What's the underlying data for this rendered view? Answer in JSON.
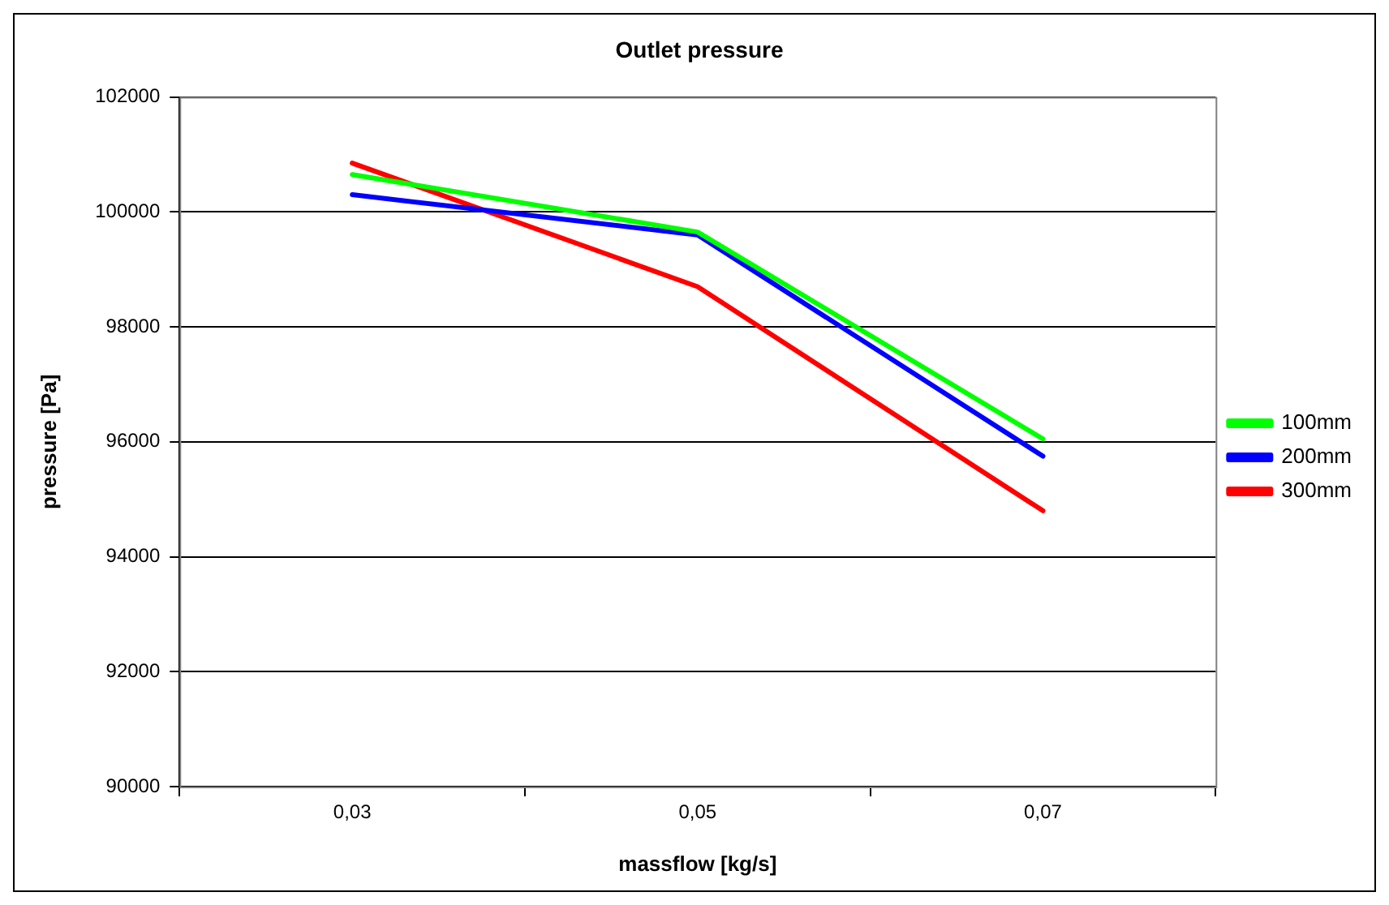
{
  "chart_data": {
    "type": "line",
    "title": "Outlet pressure",
    "xlabel": "massflow [kg/s]",
    "ylabel": "pressure [Pa]",
    "categories": [
      "0,03",
      "0,05",
      "0,07"
    ],
    "series": [
      {
        "name": "100mm",
        "color": "#00ff00",
        "values": [
          100650,
          99650,
          96050
        ]
      },
      {
        "name": "200mm",
        "color": "#0000ff",
        "values": [
          100300,
          99600,
          95750
        ]
      },
      {
        "name": "300mm",
        "color": "#ff0000",
        "values": [
          100850,
          98700,
          94800
        ]
      }
    ],
    "ylim": [
      90000,
      102000
    ],
    "yticks": [
      90000,
      92000,
      94000,
      96000,
      98000,
      100000,
      102000
    ],
    "grid": "y",
    "legend": "right",
    "marker": "none",
    "line_style": "solid"
  }
}
